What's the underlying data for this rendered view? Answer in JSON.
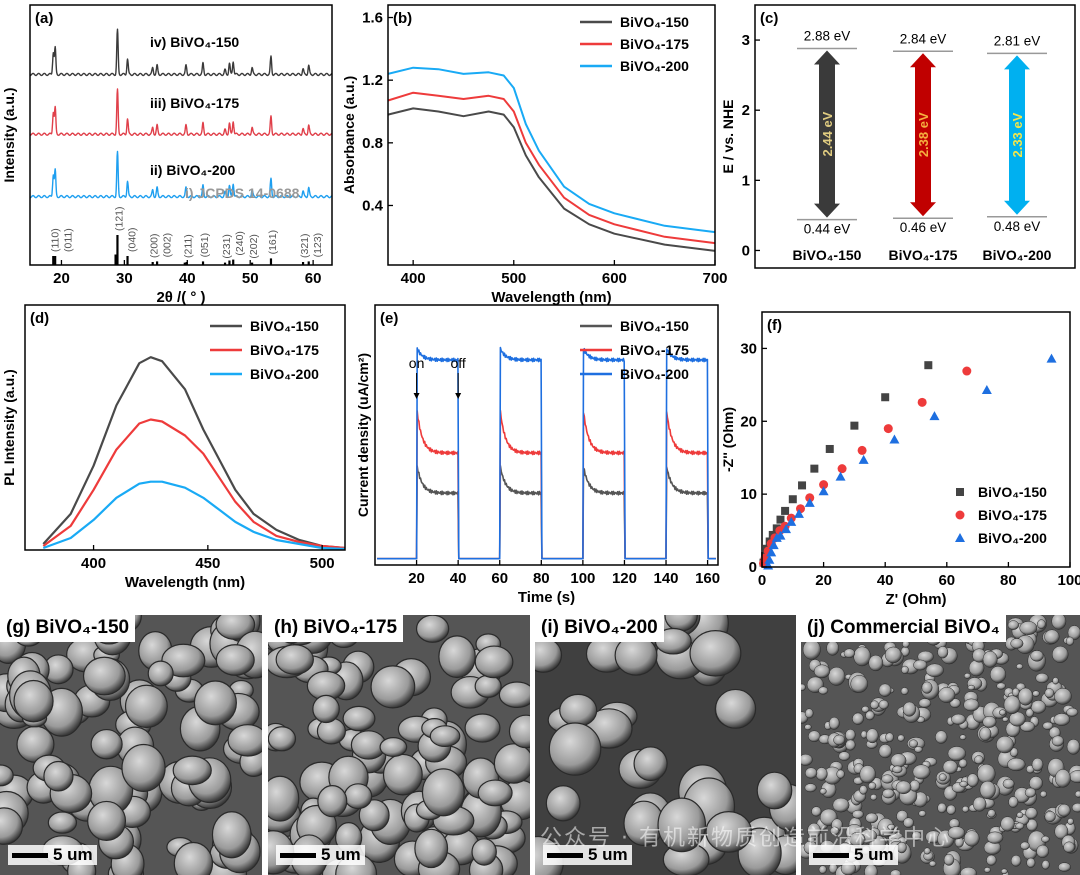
{
  "chart_data": [
    {
      "panel": "(a)",
      "type": "line",
      "xlabel": "2θ /( ° )",
      "ylabel": "Intensity (a.u.)",
      "xlim": [
        15,
        63
      ],
      "xticks": [
        "20",
        "30",
        "40",
        "50",
        "60"
      ],
      "xtick_values": [
        20,
        30,
        40,
        50,
        60
      ],
      "peaks": [
        [
          18.7,
          0.5
        ],
        [
          19.0,
          0.6
        ],
        [
          28.9,
          1.0
        ],
        [
          30.5,
          0.35
        ],
        [
          34.5,
          0.15
        ],
        [
          35.2,
          0.2
        ],
        [
          39.8,
          0.2
        ],
        [
          42.5,
          0.25
        ],
        [
          46.0,
          0.1
        ],
        [
          46.7,
          0.25
        ],
        [
          47.3,
          0.3
        ],
        [
          50.3,
          0.15
        ],
        [
          53.3,
          0.4
        ],
        [
          58.4,
          0.12
        ],
        [
          59.3,
          0.2
        ]
      ],
      "series": [
        {
          "name": "iv) BiVO₄-150",
          "roman": "iv)",
          "label": "BiVO₄-150",
          "color": "#3a3a3a"
        },
        {
          "name": "iii) BiVO₄-175",
          "roman": "iii)",
          "label": "BiVO₄-175",
          "color": "#e0404a"
        },
        {
          "name": "ii) BiVO₄-200",
          "roman": "ii)",
          "label": "BiVO₄-200",
          "color": "#1e9ff0"
        }
      ],
      "reference": {
        "name": "i) JCPDS 14-0688",
        "color": "#999999",
        "sticks": [
          [
            18.7,
            0.3,
            "(110)"
          ],
          [
            19.0,
            0.3,
            "(011)"
          ],
          [
            28.6,
            0.35,
            ""
          ],
          [
            28.9,
            1.0,
            "(121)"
          ],
          [
            30.5,
            0.3,
            "(040)"
          ],
          [
            34.5,
            0.1,
            "(200)"
          ],
          [
            35.2,
            0.12,
            "(002)"
          ],
          [
            39.6,
            0.08,
            ""
          ],
          [
            39.9,
            0.1,
            "(211)"
          ],
          [
            42.5,
            0.12,
            "(051)"
          ],
          [
            46.0,
            0.08,
            "(231)"
          ],
          [
            46.7,
            0.15,
            ""
          ],
          [
            47.3,
            0.18,
            "(240)"
          ],
          [
            50.3,
            0.08,
            "(202)"
          ],
          [
            53.3,
            0.22,
            "(161)"
          ],
          [
            58.4,
            0.1,
            "(321)"
          ],
          [
            59.3,
            0.12,
            "(123)"
          ]
        ]
      }
    },
    {
      "panel": "(b)",
      "type": "line",
      "xlabel": "Wavelength (nm)",
      "ylabel": "Absorbance (a.u.)",
      "xlim": [
        375,
        700
      ],
      "ylim": [
        0.02,
        1.68
      ],
      "xticks": [
        "400",
        "500",
        "600",
        "700"
      ],
      "xtick_values": [
        400,
        500,
        600,
        700
      ],
      "yticks": [
        "0.4",
        "0.8",
        "1.2",
        "1.6"
      ],
      "ytick_values": [
        0.4,
        0.8,
        1.2,
        1.6
      ],
      "x": [
        375,
        400,
        425,
        450,
        475,
        490,
        500,
        512,
        525,
        550,
        575,
        600,
        650,
        700
      ],
      "series": [
        {
          "name": "BiVO₄-150",
          "color": "#4a4a4a",
          "values": [
            0.98,
            1.02,
            1.0,
            0.97,
            1.0,
            0.98,
            0.9,
            0.72,
            0.58,
            0.38,
            0.28,
            0.22,
            0.15,
            0.11
          ]
        },
        {
          "name": "BiVO₄-175",
          "color": "#ee3b3b",
          "values": [
            1.07,
            1.12,
            1.1,
            1.08,
            1.1,
            1.08,
            1.0,
            0.8,
            0.66,
            0.45,
            0.34,
            0.28,
            0.2,
            0.16
          ]
        },
        {
          "name": "BiVO₄-200",
          "color": "#19aaf5",
          "values": [
            1.24,
            1.28,
            1.27,
            1.24,
            1.25,
            1.23,
            1.15,
            0.92,
            0.75,
            0.52,
            0.41,
            0.35,
            0.27,
            0.23
          ]
        }
      ],
      "legend": "top-right"
    },
    {
      "panel": "(c)",
      "type": "bar",
      "ylabel": "E / vs. NHE",
      "ylim": [
        -0.25,
        3.5
      ],
      "yticks": [
        "0",
        "1",
        "2",
        "3"
      ],
      "ytick_values": [
        0,
        1,
        2,
        3
      ],
      "bands": [
        {
          "name": "BiVO₄-150",
          "vb": 2.88,
          "cb": 0.44,
          "vb_label": "2.88 eV",
          "cb_label": "0.44 eV",
          "gap_label": "2.44 eV",
          "color": "#3a3a3a",
          "gap_color": "#e0cc80"
        },
        {
          "name": "BiVO₄-175",
          "vb": 2.84,
          "cb": 0.46,
          "vb_label": "2.84 eV",
          "cb_label": "0.46 eV",
          "gap_label": "2.38 eV",
          "color": "#c00000",
          "gap_color": "#f5b040"
        },
        {
          "name": "BiVO₄-200",
          "vb": 2.81,
          "cb": 0.48,
          "vb_label": "2.81 eV",
          "cb_label": "0.48 eV",
          "gap_label": "2.33 eV",
          "color": "#00b0f0",
          "gap_color": "#f5e64a"
        }
      ]
    },
    {
      "panel": "(d)",
      "type": "line",
      "xlabel": "Wavelength (nm)",
      "ylabel": "PL Intensity (a.u.)",
      "xlim": [
        370,
        510
      ],
      "ylim": [
        0,
        1.22
      ],
      "xticks": [
        "400",
        "450",
        "500"
      ],
      "xtick_values": [
        400,
        450,
        500
      ],
      "x": [
        378,
        390,
        400,
        410,
        420,
        425,
        430,
        440,
        448,
        455,
        462,
        470,
        480,
        490,
        500,
        510
      ],
      "series": [
        {
          "name": "BiVO₄-150",
          "color": "#4a4a4a",
          "values": [
            0.03,
            0.18,
            0.42,
            0.72,
            0.93,
            0.96,
            0.94,
            0.8,
            0.6,
            0.45,
            0.3,
            0.18,
            0.1,
            0.05,
            0.02,
            0.01
          ]
        },
        {
          "name": "BiVO₄-175",
          "color": "#ee3b3b",
          "values": [
            0.02,
            0.12,
            0.3,
            0.5,
            0.63,
            0.65,
            0.64,
            0.57,
            0.48,
            0.36,
            0.24,
            0.14,
            0.07,
            0.04,
            0.02,
            0.01
          ]
        },
        {
          "name": "BiVO₄-200",
          "color": "#19aaf5",
          "values": [
            0.01,
            0.06,
            0.15,
            0.26,
            0.33,
            0.34,
            0.34,
            0.31,
            0.26,
            0.2,
            0.14,
            0.09,
            0.05,
            0.03,
            0.01,
            0.005
          ]
        }
      ],
      "legend": "top-right"
    },
    {
      "panel": "(e)",
      "type": "line",
      "xlabel": "Time (s)",
      "ylabel": "Current density (uA/cm²)",
      "xlim": [
        0,
        165
      ],
      "ylim": [
        -0.03,
        1.2
      ],
      "xticks": [
        "20",
        "40",
        "60",
        "80",
        "100",
        "120",
        "140",
        "160"
      ],
      "xtick_values": [
        20,
        40,
        60,
        80,
        100,
        120,
        140,
        160
      ],
      "on_times": [
        20,
        60,
        100,
        140
      ],
      "off_times": [
        40,
        80,
        120,
        160
      ],
      "annotations": [
        {
          "text": "on",
          "x": 20
        },
        {
          "text": "off",
          "x": 40
        }
      ],
      "series": [
        {
          "name": "BiVO₄-150",
          "color": "#555555",
          "peak": 0.45,
          "steady": 0.31
        },
        {
          "name": "BiVO₄-175",
          "color": "#ee3b3b",
          "peak": 0.72,
          "steady": 0.5
        },
        {
          "name": "BiVO₄-200",
          "color": "#1e6fe0",
          "peak": 1.0,
          "steady": 0.94
        }
      ],
      "legend": "top-right"
    },
    {
      "panel": "(f)",
      "type": "scatter",
      "xlabel": "Z' (Ohm)",
      "ylabel": "-Z'' (Ohm)",
      "xlim": [
        0,
        100
      ],
      "ylim": [
        0,
        35
      ],
      "xticks": [
        "0",
        "20",
        "40",
        "60",
        "80",
        "100"
      ],
      "xtick_values": [
        0,
        20,
        40,
        60,
        80,
        100
      ],
      "yticks": [
        "0",
        "10",
        "20",
        "30"
      ],
      "ytick_values": [
        0,
        10,
        20,
        30
      ],
      "series": [
        {
          "name": "BiVO₄-150",
          "marker": "square",
          "color": "#444444",
          "points": [
            [
              0.5,
              0.6
            ],
            [
              1,
              1.5
            ],
            [
              1.6,
              2.5
            ],
            [
              2.5,
              3.5
            ],
            [
              3.5,
              4.4
            ],
            [
              4.8,
              5.3
            ],
            [
              6,
              6.5
            ],
            [
              7.5,
              7.7
            ],
            [
              10,
              9.3
            ],
            [
              13,
              11.2
            ],
            [
              17,
              13.5
            ],
            [
              22,
              16.2
            ],
            [
              30,
              19.4
            ],
            [
              40,
              23.3
            ],
            [
              54,
              27.7
            ]
          ]
        },
        {
          "name": "BiVO₄-175",
          "marker": "circle",
          "color": "#ee3b3b",
          "points": [
            [
              0.5,
              0.5
            ],
            [
              1,
              1.2
            ],
            [
              2,
              2.2
            ],
            [
              3,
              3.2
            ],
            [
              4.2,
              4
            ],
            [
              5.8,
              5
            ],
            [
              7.5,
              5.6
            ],
            [
              9.5,
              6.7
            ],
            [
              12.5,
              8
            ],
            [
              15.5,
              9.5
            ],
            [
              20,
              11.3
            ],
            [
              26,
              13.5
            ],
            [
              32.5,
              16
            ],
            [
              41,
              19
            ],
            [
              52,
              22.6
            ],
            [
              66.5,
              26.9
            ]
          ]
        },
        {
          "name": "BiVO₄-200",
          "marker": "triangle",
          "color": "#1e6fe0",
          "points": [
            [
              2,
              0.2
            ],
            [
              2.4,
              1
            ],
            [
              3,
              2
            ],
            [
              3.8,
              3
            ],
            [
              4.8,
              4
            ],
            [
              6,
              4.3
            ],
            [
              7.8,
              5.2
            ],
            [
              9.5,
              6.2
            ],
            [
              12,
              7.3
            ],
            [
              15.5,
              8.8
            ],
            [
              20,
              10.4
            ],
            [
              25.5,
              12.4
            ],
            [
              33,
              14.7
            ],
            [
              43,
              17.5
            ],
            [
              56,
              20.7
            ],
            [
              73,
              24.3
            ],
            [
              94,
              28.6
            ]
          ]
        }
      ],
      "legend": "right"
    }
  ],
  "sem": [
    {
      "label": "(g) BiVO₄-150",
      "scale": "5 um"
    },
    {
      "label": "(h) BiVO₄-175",
      "scale": "5 um"
    },
    {
      "label": "(i) BiVO₄-200",
      "scale": "5 um"
    },
    {
      "label": "(j) Commercial BiVO₄",
      "scale": "5 um"
    }
  ],
  "watermark": "公众号 · 有机新物质创造前沿科学中心"
}
